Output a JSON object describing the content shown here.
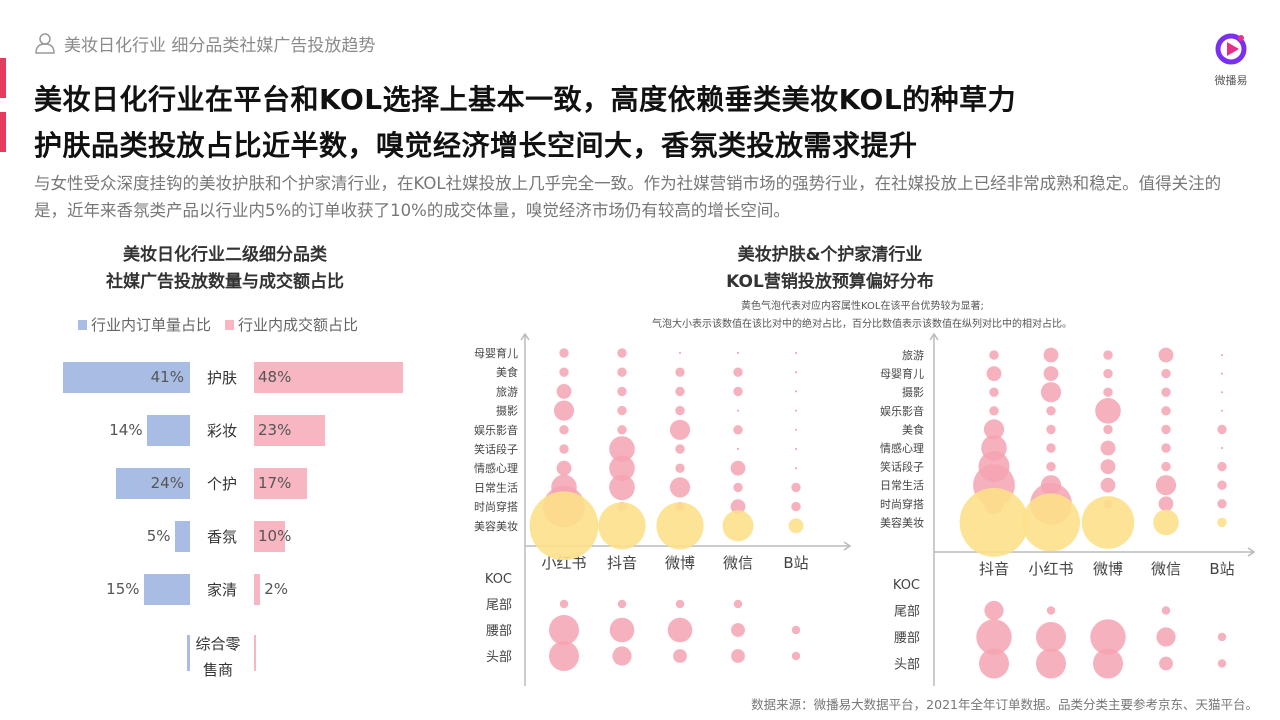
{
  "header": {
    "section": "美妆日化行业 细分品类社媒广告投放趋势",
    "logo_text": "微播易"
  },
  "titles": [
    "美妆日化行业在平台和KOL选择上基本一致，高度依赖垂类美妆KOL的种草力",
    "护肤品类投放占比近半数，嗅觉经济增长空间大，香氛类投放需求提升"
  ],
  "description": "与女性受众深度挂钩的美妆护肤和个护家清行业，在KOL社媒投放上几乎完全一致。作为社媒营销市场的强势行业，在社媒投放上已经非常成熟和稳定。值得关注的是，近年来香氛类产品以行业内5%的订单收获了10%的成交体量，嗅觉经济市场仍有较高的增长空间。",
  "left_chart_title": [
    "美妆日化行业二级细分品类",
    "社媒广告投放数量与成交额占比"
  ],
  "right_chart_title": [
    "美妆护肤&个护家清行业",
    "KOL营销投放预算偏好分布"
  ],
  "right_chart_notes": [
    "黄色气泡代表对应内容属性KOL在该平台优势较为显著;",
    "气泡大小表示该数值在该比对中的绝对占比，百分比数值表示该数值在纵列对比中的相对占比。"
  ],
  "source": "数据来源：微播易大数据平台，2021年全年订单数据。品类分类主要参考京东、天猫平台。",
  "colors": {
    "order": "#a9bde4",
    "deal": "#f7b6c2",
    "pink_bubble": "#f5a3b3",
    "yellow_bubble": "#fde08a",
    "accent": "#e73a5c"
  },
  "chart_data": [
    {
      "type": "bar",
      "legend": [
        "行业内订单量占比",
        "行业内成交额占比"
      ],
      "categories": [
        "护肤",
        "彩妆",
        "个护",
        "香氛",
        "家清",
        "综合零售商"
      ],
      "series": [
        {
          "name": "行业内订单量占比",
          "values": [
            41,
            14,
            24,
            5,
            15,
            1
          ],
          "labels": [
            "41%",
            "14%",
            "24%",
            "5%",
            "15%",
            ""
          ]
        },
        {
          "name": "行业内成交额占比",
          "values": [
            48,
            23,
            17,
            10,
            2,
            0.3
          ],
          "labels": [
            "48%",
            "23%",
            "17%",
            "10%",
            "2%",
            ""
          ]
        }
      ]
    },
    {
      "type": "scatter",
      "platforms": [
        "小红书",
        "抖音",
        "微博",
        "微信",
        "B站"
      ],
      "content_types": [
        "母婴育儿",
        "美食",
        "旅游",
        "摄影",
        "娱乐影音",
        "笑话段子",
        "情感心理",
        "日常生活",
        "时尚穿搭",
        "美容美妆"
      ],
      "size_matrix": [
        [
          1,
          1,
          0,
          0,
          0
        ],
        [
          1,
          1,
          1,
          1,
          0
        ],
        [
          2,
          1,
          1,
          1,
          0
        ],
        [
          3,
          1,
          1,
          0,
          0
        ],
        [
          1,
          1,
          3,
          1,
          0
        ],
        [
          1,
          4,
          1,
          0,
          0
        ],
        [
          2,
          4,
          1,
          2,
          0
        ],
        [
          4,
          4,
          3,
          1,
          1
        ],
        [
          7,
          1,
          1,
          2,
          1
        ],
        [
          12,
          8,
          8,
          5,
          2
        ]
      ],
      "yellow_row": "美容美妆",
      "kol_levels": [
        "KOC",
        "尾部",
        "腰部",
        "头部"
      ],
      "kol_size_matrix": [
        [
          0,
          0,
          0,
          0,
          0
        ],
        [
          1,
          1,
          1,
          1,
          0
        ],
        [
          5,
          4,
          4,
          2,
          1
        ],
        [
          5,
          3,
          2,
          2,
          1
        ]
      ]
    },
    {
      "type": "scatter",
      "platforms": [
        "抖音",
        "小红书",
        "微博",
        "微信",
        "B站"
      ],
      "content_types": [
        "旅游",
        "母婴育儿",
        "摄影",
        "娱乐影音",
        "美食",
        "情感心理",
        "笑话段子",
        "日常生活",
        "时尚穿搭",
        "美容美妆"
      ],
      "size_matrix": [
        [
          1,
          2,
          1,
          2,
          0
        ],
        [
          2,
          2,
          1,
          1,
          0
        ],
        [
          1,
          3,
          1,
          1,
          0
        ],
        [
          1,
          1,
          4,
          1,
          0
        ],
        [
          3,
          1,
          1,
          1,
          1
        ],
        [
          4,
          1,
          2,
          1,
          0
        ],
        [
          5,
          1,
          2,
          1,
          1
        ],
        [
          7,
          3,
          2,
          3,
          1
        ],
        [
          3,
          7,
          1,
          2,
          1
        ],
        [
          12,
          10,
          9,
          4,
          1
        ]
      ],
      "yellow_row": "美容美妆",
      "kol_levels": [
        "KOC",
        "尾部",
        "腰部",
        "头部"
      ],
      "kol_size_matrix": [
        [
          0,
          0,
          0,
          0,
          0
        ],
        [
          3,
          1,
          0,
          1,
          0
        ],
        [
          6,
          5,
          6,
          3,
          1
        ],
        [
          5,
          5,
          5,
          2,
          1
        ]
      ]
    }
  ]
}
